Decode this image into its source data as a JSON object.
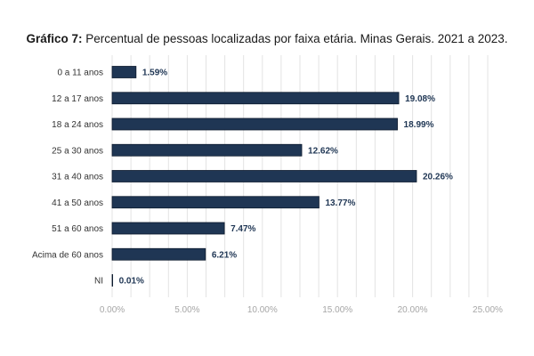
{
  "title": {
    "lead": "Gráfico 7:",
    "text": " Percentual de pessoas localizadas por faixa etária. Minas Gerais. 2021 a 2023."
  },
  "chart_data": {
    "type": "bar",
    "orientation": "horizontal",
    "categories": [
      "0 a 11 anos",
      "12 a 17 anos",
      "18 a 24 anos",
      "25 a 30 anos",
      "31 a 40 anos",
      "41 a 50 anos",
      "51 a 60 anos",
      "Acima de 60 anos",
      "NI"
    ],
    "values": [
      1.59,
      19.08,
      18.99,
      12.62,
      20.26,
      13.77,
      7.47,
      6.21,
      0.01
    ],
    "value_labels": [
      "1.59%",
      "19.08%",
      "18.99%",
      "12.62%",
      "20.26%",
      "13.77%",
      "7.47%",
      "6.21%",
      "0.01%"
    ],
    "xlim": [
      0,
      25
    ],
    "ticks": [
      0,
      5,
      10,
      15,
      20,
      25
    ],
    "tick_labels": [
      "0.00%",
      "5.00%",
      "10.00%",
      "15.00%",
      "20.00%",
      "25.00%"
    ],
    "grid": true,
    "legend": "none",
    "colors": {
      "bar": "#1f3654",
      "bar_edge": "#0d1b2e",
      "grid": "#e3e3e3",
      "tick": "#a6a6a6"
    }
  }
}
